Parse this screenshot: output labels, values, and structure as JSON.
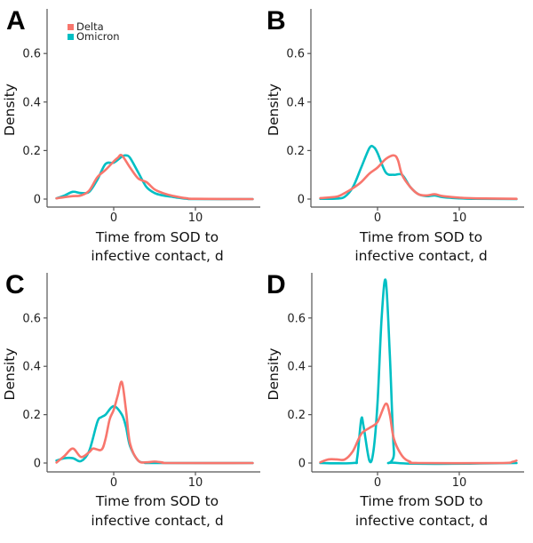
{
  "colors": {
    "Delta": "#F8766D",
    "Omicron": "#00BFC4"
  },
  "legend": {
    "items": [
      {
        "label": "Delta"
      },
      {
        "label": "Omicron"
      }
    ],
    "placement": "top-left of panel A"
  },
  "chart_data": [
    {
      "type": "line",
      "panel": "A",
      "title": "",
      "xlabel_line1": "Time from SOD to",
      "xlabel_line2": "infective contact, d",
      "ylabel": "Density",
      "xlim": [
        -8,
        18.5
      ],
      "ylim": [
        -0.03,
        0.78
      ],
      "xticks": [
        0,
        10
      ],
      "xtick_labels": [
        "0",
        "10"
      ],
      "yticks": [
        0,
        0.2,
        0.4,
        0.6
      ],
      "ytick_labels": [
        "0",
        "0.2",
        "0.4",
        "0.6"
      ],
      "grid": false,
      "series": [
        {
          "name": "Omicron",
          "x": [
            -7,
            -6,
            -5,
            -4,
            -3,
            -2,
            -1,
            0,
            1,
            1.5,
            2,
            3,
            4,
            5,
            6,
            7,
            8,
            9,
            10,
            17
          ],
          "y": [
            0.003,
            0.015,
            0.03,
            0.025,
            0.03,
            0.08,
            0.145,
            0.15,
            0.175,
            0.18,
            0.17,
            0.11,
            0.05,
            0.025,
            0.015,
            0.01,
            0.005,
            0.001,
            0,
            0
          ]
        },
        {
          "name": "Delta",
          "x": [
            -7,
            -6,
            -5,
            -4,
            -3,
            -2,
            -1,
            0,
            0.5,
            1,
            2,
            3,
            4,
            5,
            6,
            7,
            8,
            9,
            10,
            17
          ],
          "y": [
            0.003,
            0.008,
            0.012,
            0.015,
            0.035,
            0.09,
            0.12,
            0.155,
            0.17,
            0.18,
            0.13,
            0.085,
            0.07,
            0.04,
            0.025,
            0.015,
            0.008,
            0.003,
            0.001,
            0
          ]
        }
      ]
    },
    {
      "type": "line",
      "panel": "B",
      "title": "",
      "xlabel_line1": "Time from SOD to",
      "xlabel_line2": "infective contact, d",
      "ylabel": "Density",
      "xlim": [
        -8,
        18.5
      ],
      "ylim": [
        -0.03,
        0.78
      ],
      "xticks": [
        0,
        10
      ],
      "xtick_labels": [
        "0",
        "10"
      ],
      "yticks": [
        0,
        0.2,
        0.4,
        0.6
      ],
      "ytick_labels": [
        "0",
        "0.2",
        "0.4",
        "0.6"
      ],
      "grid": false,
      "series": [
        {
          "name": "Omicron",
          "x": [
            -7,
            -5,
            -4,
            -3,
            -2,
            -1,
            -0.5,
            0,
            1,
            2,
            3,
            4,
            5,
            6,
            7,
            8,
            10,
            12,
            17
          ],
          "y": [
            0.001,
            0.002,
            0.01,
            0.05,
            0.13,
            0.21,
            0.215,
            0.19,
            0.11,
            0.1,
            0.1,
            0.05,
            0.02,
            0.012,
            0.015,
            0.008,
            0.003,
            0.001,
            0
          ]
        },
        {
          "name": "Delta",
          "x": [
            -7,
            -5,
            -4,
            -3,
            -2,
            -1,
            0,
            1,
            2,
            2.5,
            3,
            4,
            5,
            6,
            7,
            8,
            10,
            12,
            17
          ],
          "y": [
            0.004,
            0.01,
            0.025,
            0.045,
            0.07,
            0.105,
            0.13,
            0.165,
            0.18,
            0.16,
            0.1,
            0.05,
            0.02,
            0.015,
            0.02,
            0.012,
            0.006,
            0.003,
            0.001
          ]
        }
      ]
    },
    {
      "type": "line",
      "panel": "C",
      "title": "",
      "xlabel_line1": "Time from SOD to",
      "xlabel_line2": "infective contact, d",
      "ylabel": "Density",
      "xlim": [
        -8,
        18.5
      ],
      "ylim": [
        -0.03,
        0.78
      ],
      "xticks": [
        0,
        10
      ],
      "xtick_labels": [
        "0",
        "10"
      ],
      "yticks": [
        0,
        0.2,
        0.4,
        0.6
      ],
      "ytick_labels": [
        "0",
        "0.2",
        "0.4",
        "0.6"
      ],
      "grid": false,
      "series": [
        {
          "name": "Omicron",
          "x": [
            -7,
            -6,
            -5,
            -4,
            -3,
            -2,
            -1.5,
            -1,
            0,
            1,
            1.5,
            2,
            3,
            4,
            5,
            17
          ],
          "y": [
            0.01,
            0.02,
            0.02,
            0.008,
            0.05,
            0.17,
            0.19,
            0.2,
            0.235,
            0.2,
            0.15,
            0.07,
            0.01,
            0.002,
            0,
            0
          ]
        },
        {
          "name": "Delta",
          "x": [
            -7,
            -6,
            -5,
            -4,
            -3,
            -2.5,
            -1.5,
            -1,
            -0.5,
            0,
            0.5,
            1,
            1.5,
            2,
            3,
            4,
            5,
            6,
            7,
            17
          ],
          "y": [
            0.002,
            0.03,
            0.06,
            0.025,
            0.045,
            0.06,
            0.055,
            0.1,
            0.18,
            0.22,
            0.28,
            0.335,
            0.22,
            0.08,
            0.01,
            0.003,
            0.006,
            0.002,
            0,
            0
          ]
        }
      ]
    },
    {
      "type": "line",
      "panel": "D",
      "title": "",
      "xlabel_line1": "Time from SOD to",
      "xlabel_line2": "infective contact, d",
      "ylabel": "Density",
      "xlim": [
        -8,
        18.5
      ],
      "ylim": [
        -0.03,
        0.78
      ],
      "xticks": [
        0,
        10
      ],
      "xtick_labels": [
        "0",
        "10"
      ],
      "yticks": [
        0,
        0.2,
        0.4,
        0.6
      ],
      "ytick_labels": [
        "0",
        "0.2",
        "0.4",
        "0.6"
      ],
      "grid": false,
      "series": [
        {
          "name": "Omicron",
          "x": [
            -7,
            -3,
            -2.5,
            -2,
            -1.7,
            -1,
            -0.5,
            0,
            0.5,
            1,
            1.5,
            2,
            2.5,
            17
          ],
          "y": [
            0,
            0,
            0.02,
            0.18,
            0.15,
            0.01,
            0.05,
            0.25,
            0.6,
            0.755,
            0.45,
            0.05,
            0,
            0
          ]
        },
        {
          "name": "Delta",
          "x": [
            -7,
            -6,
            -5,
            -4,
            -3,
            -2,
            -1,
            0,
            1,
            1.5,
            2,
            3,
            4,
            5,
            15,
            16.5,
            17
          ],
          "y": [
            0.003,
            0.015,
            0.015,
            0.015,
            0.05,
            0.12,
            0.145,
            0.17,
            0.245,
            0.2,
            0.1,
            0.03,
            0.005,
            0,
            0,
            0.005,
            0.01
          ]
        }
      ]
    }
  ]
}
